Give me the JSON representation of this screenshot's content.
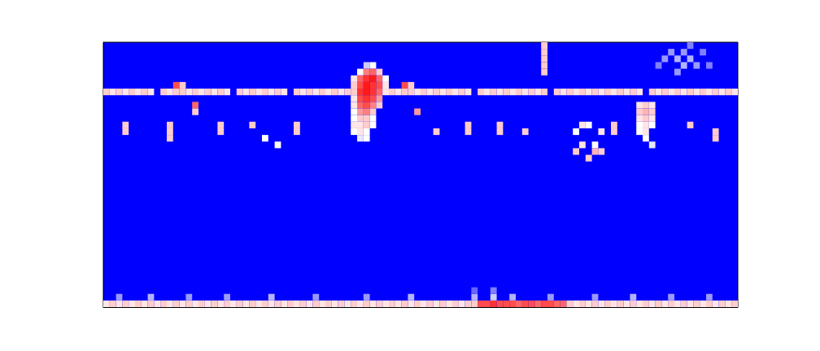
{
  "chart_data": {
    "type": "heatmap",
    "tick_labels": false,
    "xlim": [
      0,
      100
    ],
    "ylim": [
      0,
      40
    ],
    "zlim": [
      0,
      1
    ],
    "colors": [
      "#0000ff",
      "#ffffff",
      "#ff0000"
    ],
    "cells": [
      [
        0,
        32,
        0.6
      ],
      [
        1,
        32,
        0.55
      ],
      [
        2,
        32,
        0.6
      ],
      [
        3,
        32,
        0.55
      ],
      [
        4,
        32,
        0.6
      ],
      [
        5,
        32,
        0.55
      ],
      [
        6,
        32,
        0.6
      ],
      [
        7,
        32,
        0.55
      ],
      [
        9,
        32,
        0.6
      ],
      [
        10,
        32,
        0.55
      ],
      [
        11,
        32,
        0.6
      ],
      [
        12,
        32,
        0.6
      ],
      [
        13,
        32,
        0.55
      ],
      [
        14,
        32,
        0.6
      ],
      [
        15,
        32,
        0.55
      ],
      [
        16,
        32,
        0.6
      ],
      [
        17,
        32,
        0.55
      ],
      [
        18,
        32,
        0.6
      ],
      [
        19,
        32,
        0.55
      ],
      [
        21,
        32,
        0.6
      ],
      [
        22,
        32,
        0.55
      ],
      [
        23,
        32,
        0.6
      ],
      [
        24,
        32,
        0.55
      ],
      [
        25,
        32,
        0.6
      ],
      [
        26,
        32,
        0.55
      ],
      [
        27,
        32,
        0.6
      ],
      [
        28,
        32,
        0.55
      ],
      [
        30,
        32,
        0.6
      ],
      [
        31,
        32,
        0.55
      ],
      [
        32,
        32,
        0.6
      ],
      [
        33,
        32,
        0.55
      ],
      [
        34,
        32,
        0.6
      ],
      [
        35,
        32,
        0.55
      ],
      [
        36,
        32,
        0.6
      ],
      [
        37,
        32,
        0.55
      ],
      [
        38,
        32,
        0.6
      ],
      [
        45,
        32,
        0.6
      ],
      [
        46,
        32,
        0.55
      ],
      [
        47,
        32,
        0.6
      ],
      [
        48,
        32,
        0.6
      ],
      [
        49,
        32,
        0.55
      ],
      [
        50,
        32,
        0.6
      ],
      [
        51,
        32,
        0.55
      ],
      [
        52,
        32,
        0.6
      ],
      [
        53,
        32,
        0.55
      ],
      [
        54,
        32,
        0.6
      ],
      [
        55,
        32,
        0.55
      ],
      [
        56,
        32,
        0.6
      ],
      [
        57,
        32,
        0.55
      ],
      [
        59,
        32,
        0.6
      ],
      [
        60,
        32,
        0.55
      ],
      [
        61,
        32,
        0.6
      ],
      [
        62,
        32,
        0.55
      ],
      [
        63,
        32,
        0.6
      ],
      [
        64,
        32,
        0.55
      ],
      [
        65,
        32,
        0.6
      ],
      [
        66,
        32,
        0.55
      ],
      [
        67,
        32,
        0.6
      ],
      [
        68,
        32,
        0.55
      ],
      [
        69,
        32,
        0.6
      ],
      [
        71,
        32,
        0.6
      ],
      [
        72,
        32,
        0.55
      ],
      [
        73,
        32,
        0.6
      ],
      [
        74,
        32,
        0.55
      ],
      [
        75,
        32,
        0.6
      ],
      [
        76,
        32,
        0.55
      ],
      [
        77,
        32,
        0.6
      ],
      [
        78,
        32,
        0.55
      ],
      [
        79,
        32,
        0.6
      ],
      [
        80,
        32,
        0.55
      ],
      [
        81,
        32,
        0.6
      ],
      [
        82,
        32,
        0.55
      ],
      [
        83,
        32,
        0.6
      ],
      [
        84,
        32,
        0.55
      ],
      [
        86,
        32,
        0.6
      ],
      [
        87,
        32,
        0.55
      ],
      [
        88,
        32,
        0.6
      ],
      [
        89,
        32,
        0.55
      ],
      [
        90,
        32,
        0.6
      ],
      [
        91,
        32,
        0.55
      ],
      [
        92,
        32,
        0.6
      ],
      [
        93,
        32,
        0.55
      ],
      [
        94,
        32,
        0.6
      ],
      [
        95,
        32,
        0.55
      ],
      [
        96,
        32,
        0.6
      ],
      [
        97,
        32,
        0.55
      ],
      [
        98,
        32,
        0.6
      ],
      [
        99,
        32,
        0.55
      ],
      [
        11,
        33,
        0.85
      ],
      [
        12,
        33,
        0.6
      ],
      [
        14,
        30,
        0.8
      ],
      [
        14,
        29,
        0.6
      ],
      [
        47,
        33,
        0.85
      ],
      [
        48,
        33,
        0.6
      ],
      [
        49,
        29,
        0.7
      ],
      [
        41,
        36,
        0.4
      ],
      [
        42,
        36,
        0.5
      ],
      [
        40,
        35,
        0.5
      ],
      [
        41,
        35,
        0.75
      ],
      [
        42,
        35,
        0.8
      ],
      [
        43,
        35,
        0.6
      ],
      [
        39,
        34,
        0.55
      ],
      [
        40,
        34,
        0.8
      ],
      [
        41,
        34,
        0.9
      ],
      [
        42,
        34,
        0.95
      ],
      [
        43,
        34,
        0.8
      ],
      [
        44,
        34,
        0.5
      ],
      [
        39,
        33,
        0.6
      ],
      [
        40,
        33,
        0.85
      ],
      [
        41,
        33,
        0.95
      ],
      [
        42,
        33,
        0.9
      ],
      [
        43,
        33,
        0.85
      ],
      [
        44,
        33,
        0.55
      ],
      [
        39,
        32,
        0.6
      ],
      [
        40,
        32,
        0.9
      ],
      [
        41,
        32,
        0.95
      ],
      [
        42,
        32,
        0.9
      ],
      [
        43,
        32,
        0.8
      ],
      [
        44,
        32,
        0.55
      ],
      [
        39,
        31,
        0.55
      ],
      [
        40,
        31,
        0.85
      ],
      [
        41,
        31,
        0.9
      ],
      [
        42,
        31,
        0.85
      ],
      [
        43,
        31,
        0.7
      ],
      [
        39,
        30,
        0.55
      ],
      [
        40,
        30,
        0.8
      ],
      [
        41,
        30,
        0.85
      ],
      [
        42,
        30,
        0.75
      ],
      [
        43,
        30,
        0.6
      ],
      [
        39,
        29,
        0.5
      ],
      [
        40,
        29,
        0.7
      ],
      [
        41,
        29,
        0.75
      ],
      [
        42,
        29,
        0.6
      ],
      [
        39,
        28,
        0.5
      ],
      [
        40,
        28,
        0.6
      ],
      [
        41,
        28,
        0.6
      ],
      [
        42,
        28,
        0.5
      ],
      [
        39,
        27,
        0.55
      ],
      [
        40,
        27,
        0.55
      ],
      [
        41,
        27,
        0.6
      ],
      [
        42,
        27,
        0.5
      ],
      [
        39,
        26,
        0.5
      ],
      [
        40,
        26,
        0.55
      ],
      [
        41,
        26,
        0.5
      ],
      [
        40,
        25,
        0.45
      ],
      [
        41,
        25,
        0.5
      ],
      [
        3,
        26,
        0.6
      ],
      [
        3,
        27,
        0.6
      ],
      [
        10,
        25,
        0.6
      ],
      [
        10,
        26,
        0.6
      ],
      [
        10,
        27,
        0.6
      ],
      [
        18,
        26,
        0.6
      ],
      [
        18,
        27,
        0.6
      ],
      [
        23,
        27,
        0.6
      ],
      [
        30,
        26,
        0.6
      ],
      [
        30,
        27,
        0.6
      ],
      [
        52,
        26,
        0.6
      ],
      [
        57,
        26,
        0.6
      ],
      [
        57,
        27,
        0.6
      ],
      [
        62,
        26,
        0.6
      ],
      [
        62,
        27,
        0.6
      ],
      [
        66,
        26,
        0.6
      ],
      [
        80,
        26,
        0.6
      ],
      [
        80,
        27,
        0.6
      ],
      [
        92,
        27,
        0.6
      ],
      [
        96,
        25,
        0.6
      ],
      [
        96,
        26,
        0.6
      ],
      [
        25,
        25,
        0.5
      ],
      [
        27,
        24,
        0.5
      ],
      [
        69,
        35,
        0.6
      ],
      [
        69,
        36,
        0.6
      ],
      [
        69,
        37,
        0.6
      ],
      [
        69,
        38,
        0.6
      ],
      [
        69,
        39,
        0.6
      ],
      [
        84,
        30,
        0.55
      ],
      [
        85,
        30,
        0.6
      ],
      [
        86,
        30,
        0.55
      ],
      [
        84,
        29,
        0.6
      ],
      [
        85,
        29,
        0.65
      ],
      [
        86,
        29,
        0.6
      ],
      [
        84,
        28,
        0.55
      ],
      [
        85,
        28,
        0.6
      ],
      [
        86,
        28,
        0.55
      ],
      [
        84,
        27,
        0.5
      ],
      [
        85,
        27,
        0.55
      ],
      [
        86,
        27,
        0.5
      ],
      [
        84,
        26,
        0.5
      ],
      [
        85,
        26,
        0.55
      ],
      [
        85,
        25,
        0.5
      ],
      [
        86,
        24,
        0.45
      ],
      [
        74,
        26,
        0.5
      ],
      [
        75,
        27,
        0.55
      ],
      [
        76,
        27,
        0.5
      ],
      [
        78,
        26,
        0.55
      ],
      [
        74,
        23,
        0.6
      ],
      [
        76,
        22,
        0.6
      ],
      [
        77,
        23,
        0.65
      ],
      [
        78,
        23,
        0.6
      ],
      [
        75,
        24,
        0.55
      ],
      [
        77,
        24,
        0.5
      ],
      [
        88,
        37,
        0.3
      ],
      [
        89,
        38,
        0.3
      ],
      [
        90,
        37,
        0.35
      ],
      [
        91,
        36,
        0.35
      ],
      [
        91,
        38,
        0.3
      ],
      [
        92,
        37,
        0.35
      ],
      [
        93,
        36,
        0.3
      ],
      [
        94,
        38,
        0.25
      ],
      [
        90,
        35,
        0.3
      ],
      [
        95,
        36,
        0.25
      ],
      [
        87,
        36,
        0.25
      ],
      [
        92,
        39,
        0.25
      ],
      [
        0,
        0,
        0.55
      ],
      [
        1,
        0,
        0.6
      ],
      [
        2,
        0,
        0.55
      ],
      [
        3,
        0,
        0.6
      ],
      [
        4,
        0,
        0.55
      ],
      [
        5,
        0,
        0.6
      ],
      [
        6,
        0,
        0.55
      ],
      [
        7,
        0,
        0.6
      ],
      [
        8,
        0,
        0.55
      ],
      [
        9,
        0,
        0.6
      ],
      [
        10,
        0,
        0.55
      ],
      [
        11,
        0,
        0.6
      ],
      [
        12,
        0,
        0.55
      ],
      [
        13,
        0,
        0.6
      ],
      [
        14,
        0,
        0.55
      ],
      [
        15,
        0,
        0.6
      ],
      [
        16,
        0,
        0.55
      ],
      [
        17,
        0,
        0.6
      ],
      [
        18,
        0,
        0.55
      ],
      [
        19,
        0,
        0.6
      ],
      [
        20,
        0,
        0.55
      ],
      [
        21,
        0,
        0.6
      ],
      [
        22,
        0,
        0.55
      ],
      [
        23,
        0,
        0.6
      ],
      [
        24,
        0,
        0.55
      ],
      [
        25,
        0,
        0.6
      ],
      [
        26,
        0,
        0.55
      ],
      [
        27,
        0,
        0.6
      ],
      [
        28,
        0,
        0.55
      ],
      [
        29,
        0,
        0.6
      ],
      [
        30,
        0,
        0.55
      ],
      [
        31,
        0,
        0.6
      ],
      [
        32,
        0,
        0.55
      ],
      [
        33,
        0,
        0.6
      ],
      [
        34,
        0,
        0.55
      ],
      [
        35,
        0,
        0.6
      ],
      [
        36,
        0,
        0.55
      ],
      [
        37,
        0,
        0.6
      ],
      [
        38,
        0,
        0.55
      ],
      [
        39,
        0,
        0.6
      ],
      [
        40,
        0,
        0.55
      ],
      [
        41,
        0,
        0.6
      ],
      [
        42,
        0,
        0.55
      ],
      [
        43,
        0,
        0.6
      ],
      [
        44,
        0,
        0.55
      ],
      [
        45,
        0,
        0.6
      ],
      [
        46,
        0,
        0.55
      ],
      [
        47,
        0,
        0.6
      ],
      [
        48,
        0,
        0.55
      ],
      [
        49,
        0,
        0.6
      ],
      [
        50,
        0,
        0.55
      ],
      [
        51,
        0,
        0.6
      ],
      [
        52,
        0,
        0.55
      ],
      [
        53,
        0,
        0.6
      ],
      [
        54,
        0,
        0.55
      ],
      [
        55,
        0,
        0.6
      ],
      [
        56,
        0,
        0.55
      ],
      [
        57,
        0,
        0.6
      ],
      [
        58,
        0,
        0.6
      ],
      [
        59,
        0,
        0.85
      ],
      [
        60,
        0,
        0.85
      ],
      [
        61,
        0,
        0.9
      ],
      [
        62,
        0,
        0.85
      ],
      [
        63,
        0,
        0.85
      ],
      [
        64,
        0,
        0.85
      ],
      [
        65,
        0,
        0.8
      ],
      [
        66,
        0,
        0.85
      ],
      [
        67,
        0,
        0.85
      ],
      [
        68,
        0,
        0.8
      ],
      [
        69,
        0,
        0.85
      ],
      [
        70,
        0,
        0.85
      ],
      [
        71,
        0,
        0.8
      ],
      [
        72,
        0,
        0.8
      ],
      [
        73,
        0,
        0.6
      ],
      [
        74,
        0,
        0.55
      ],
      [
        75,
        0,
        0.6
      ],
      [
        76,
        0,
        0.55
      ],
      [
        77,
        0,
        0.6
      ],
      [
        78,
        0,
        0.55
      ],
      [
        79,
        0,
        0.6
      ],
      [
        80,
        0,
        0.55
      ],
      [
        81,
        0,
        0.6
      ],
      [
        82,
        0,
        0.55
      ],
      [
        83,
        0,
        0.6
      ],
      [
        84,
        0,
        0.55
      ],
      [
        85,
        0,
        0.6
      ],
      [
        86,
        0,
        0.55
      ],
      [
        87,
        0,
        0.6
      ],
      [
        88,
        0,
        0.55
      ],
      [
        89,
        0,
        0.6
      ],
      [
        90,
        0,
        0.55
      ],
      [
        91,
        0,
        0.6
      ],
      [
        92,
        0,
        0.55
      ],
      [
        93,
        0,
        0.6
      ],
      [
        94,
        0,
        0.55
      ],
      [
        95,
        0,
        0.6
      ],
      [
        96,
        0,
        0.55
      ],
      [
        97,
        0,
        0.6
      ],
      [
        98,
        0,
        0.55
      ],
      [
        99,
        0,
        0.6
      ],
      [
        2,
        1,
        0.3
      ],
      [
        7,
        1,
        0.35
      ],
      [
        13,
        1,
        0.3
      ],
      [
        19,
        1,
        0.3
      ],
      [
        26,
        1,
        0.35
      ],
      [
        33,
        1,
        0.3
      ],
      [
        41,
        1,
        0.3
      ],
      [
        48,
        1,
        0.35
      ],
      [
        58,
        1,
        0.35
      ],
      [
        61,
        1,
        0.4
      ],
      [
        64,
        1,
        0.35
      ],
      [
        70,
        1,
        0.3
      ],
      [
        77,
        1,
        0.3
      ],
      [
        83,
        1,
        0.35
      ],
      [
        89,
        1,
        0.3
      ],
      [
        95,
        1,
        0.3
      ],
      [
        58,
        2,
        0.2
      ],
      [
        61,
        2,
        0.25
      ]
    ]
  }
}
